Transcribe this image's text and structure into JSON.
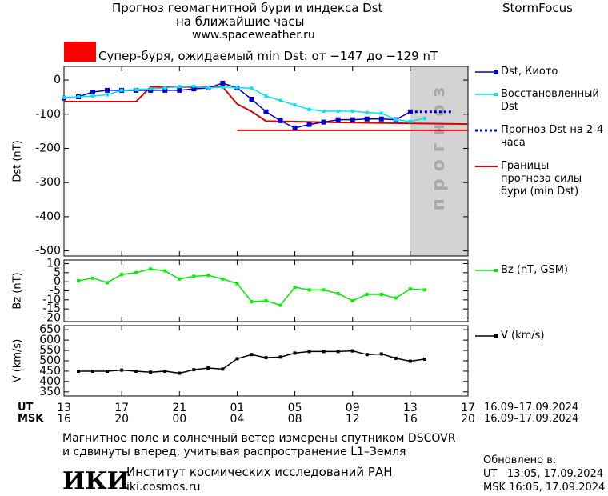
{
  "header": {
    "title": "Прогноз геомагнитной бури и индекса Dst",
    "subtitle": "на ближайшие часы",
    "site": "www.spaceweather.ru",
    "brand": "StormFocus"
  },
  "alert": {
    "text": "Супер-буря, ожидаемый min Dst: от −147 до −129 nT",
    "color": "#ff0000"
  },
  "x_axis": {
    "xlim": [
      0,
      28
    ],
    "xticks": [
      {
        "value": 0,
        "label": "13"
      },
      {
        "value": 4,
        "label": "17"
      },
      {
        "value": 8,
        "label": "21"
      },
      {
        "value": 12,
        "label": "01"
      },
      {
        "value": 16,
        "label": "05"
      },
      {
        "value": 20,
        "label": "09"
      },
      {
        "value": 24,
        "label": "13"
      },
      {
        "value": 28,
        "label": "17"
      }
    ],
    "msk_ticks": [
      {
        "value": 0,
        "label": "16"
      },
      {
        "value": 4,
        "label": "20"
      },
      {
        "value": 8,
        "label": "00"
      },
      {
        "value": 12,
        "label": "04"
      },
      {
        "value": 16,
        "label": "08"
      },
      {
        "value": 20,
        "label": "12"
      },
      {
        "value": 24,
        "label": "16"
      },
      {
        "value": 28,
        "label": "20"
      }
    ],
    "ut_label": "UT",
    "msk_label": "MSK",
    "ut_dates": "16.09–17.09.2024",
    "msk_dates": "16.09–17.09.2024"
  },
  "chart_data": [
    {
      "type": "line",
      "ylabel": "Dst (nT)",
      "ylim": [
        -515,
        40
      ],
      "yticks": [
        0,
        -100,
        -200,
        -300,
        -400,
        -500
      ],
      "forecast_region": {
        "x": [
          24,
          28
        ],
        "label": "прогноз",
        "color": "#d3d3d3"
      },
      "series": [
        {
          "name": "Dst, Киото",
          "color": "#0000cc",
          "marker": "square",
          "x": [
            0,
            1,
            2,
            3,
            4,
            5,
            6,
            7,
            8,
            9,
            10,
            11,
            12,
            13,
            14,
            15,
            16,
            17,
            18,
            19,
            20,
            21,
            22,
            23,
            24
          ],
          "values": [
            -53,
            -49,
            -35,
            -30,
            -30,
            -30,
            -30,
            -30,
            -30,
            -26,
            -23,
            -9,
            -23,
            -56,
            -93,
            -119,
            -140,
            -130,
            -123,
            -116,
            -116,
            -114,
            -114,
            -116,
            -93
          ]
        },
        {
          "name": "Восстановленный Dst",
          "color": "#00e5ee",
          "marker": "small",
          "x": [
            0,
            1,
            2,
            3,
            4,
            5,
            6,
            7,
            8,
            9,
            10,
            11,
            12,
            13,
            14,
            15,
            16,
            17,
            18,
            19,
            20,
            21,
            22,
            23,
            24,
            25
          ],
          "values": [
            -51,
            -49,
            -47,
            -43,
            -30,
            -28,
            -26,
            -23,
            -19,
            -18,
            -23,
            -21,
            -22,
            -24,
            -47,
            -60,
            -73,
            -86,
            -91,
            -91,
            -91,
            -95,
            -97,
            -116,
            -121,
            -112
          ]
        },
        {
          "name": "Прогноз Dst на 2-4 часа",
          "color": "#0000cc",
          "marker": "none",
          "dash": true,
          "x": [
            24,
            27
          ],
          "values": [
            -93,
            -93
          ]
        }
      ],
      "bounds": {
        "name": "Границы прогноза силы бури (min Dst)",
        "color": "#dd0000",
        "lines": [
          {
            "x": [
              0,
              5,
              6,
              11,
              12,
              13,
              14,
              19,
              28
            ],
            "values": [
              -63,
              -63,
              -20,
              -20,
              -70,
              -92,
              -120,
              -124,
              -129
            ]
          },
          {
            "x": [
              12,
              28
            ],
            "values": [
              -147,
              -147
            ]
          }
        ]
      }
    },
    {
      "type": "line",
      "ylabel": "Bz (nT)",
      "ylim": [
        -22,
        12
      ],
      "yticks": [
        10,
        5,
        0,
        -5,
        -10,
        -15,
        -20
      ],
      "series": [
        {
          "name": "Bz (nT, GSM)",
          "color": "#00ee00",
          "marker": "small",
          "x": [
            1,
            2,
            3,
            4,
            5,
            6,
            7,
            8,
            9,
            10,
            11,
            12,
            13,
            14,
            15,
            16,
            17,
            18,
            19,
            20,
            21,
            22,
            23,
            24,
            25
          ],
          "values": [
            0.5,
            2,
            -0.5,
            4,
            5,
            7,
            6,
            1.5,
            3,
            3.5,
            1.5,
            -1,
            -11,
            -10.5,
            -13,
            -3,
            -4.5,
            -4.5,
            -6.5,
            -10.5,
            -7,
            -7,
            -9,
            -4,
            -4.5
          ]
        }
      ]
    },
    {
      "type": "line",
      "ylabel": "V (km/s)",
      "ylim": [
        330,
        670
      ],
      "yticks": [
        650,
        600,
        550,
        500,
        450,
        400,
        350
      ],
      "series": [
        {
          "name": "V (km/s)",
          "color": "#000000",
          "marker": "small",
          "x": [
            1,
            2,
            3,
            4,
            5,
            6,
            7,
            8,
            9,
            10,
            11,
            12,
            13,
            14,
            15,
            16,
            17,
            18,
            19,
            20,
            21,
            22,
            23,
            24,
            25
          ],
          "values": [
            450,
            450,
            450,
            455,
            450,
            445,
            450,
            440,
            457,
            465,
            460,
            510,
            530,
            515,
            518,
            537,
            545,
            545,
            545,
            548,
            530,
            533,
            512,
            498,
            508
          ]
        }
      ]
    }
  ],
  "footer": {
    "note1": "Магнитное поле и солнечный ветер измерены спутником DSCOVR",
    "note2": "и сдвинуты вперед, учитывая распространение L1–Земля",
    "updated": "Обновлено в:",
    "updated_ut": "UT   13:05, 17.09.2024",
    "updated_msk": "MSK 16:05, 17.09.2024",
    "logo": "ИКИ",
    "institute": "Институт космических исследований РАН",
    "url": "iki.cosmos.ru"
  }
}
